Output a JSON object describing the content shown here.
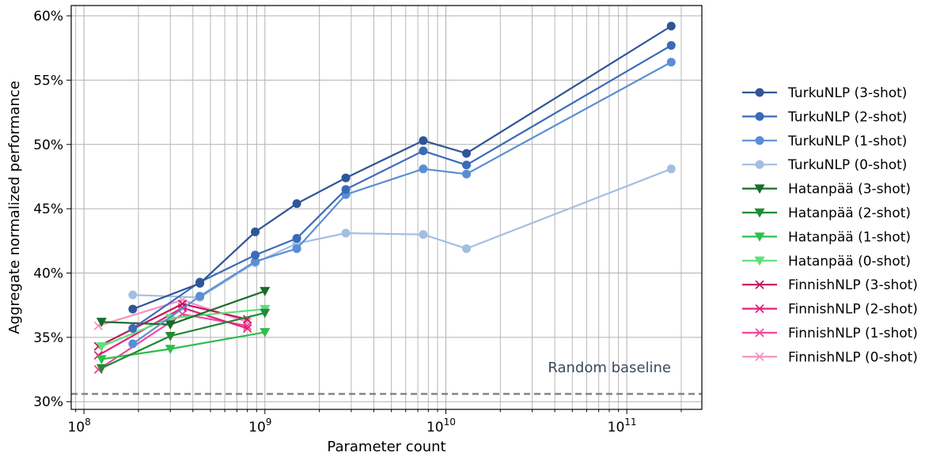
{
  "chart_data": {
    "type": "line",
    "xlabel": "Parameter count",
    "ylabel": "Aggregate normalized performance",
    "x_scale": "log",
    "xlim": [
      85000000,
      260000000000
    ],
    "ylim": [
      29.4,
      60.8
    ],
    "x_ticks": [
      {
        "value": 100000000,
        "base": "10",
        "exp": "8"
      },
      {
        "value": 1000000000,
        "base": "10",
        "exp": "9"
      },
      {
        "value": 10000000000,
        "base": "10",
        "exp": "10"
      },
      {
        "value": 100000000000,
        "base": "10",
        "exp": "11"
      }
    ],
    "y_ticks": [
      {
        "value": 30,
        "label": "30%"
      },
      {
        "value": 35,
        "label": "35%"
      },
      {
        "value": 40,
        "label": "40%"
      },
      {
        "value": 45,
        "label": "45%"
      },
      {
        "value": 50,
        "label": "50%"
      },
      {
        "value": 55,
        "label": "55%"
      },
      {
        "value": 60,
        "label": "60%"
      }
    ],
    "grid": true,
    "legend_position": "outside-right",
    "baseline": {
      "label": "Random baseline",
      "value": 30.6,
      "color": "#808080"
    },
    "series": [
      {
        "name": "TurkuNLP (3-shot)",
        "color": "#2f5597",
        "marker": "circle",
        "x": [
          186000000,
          437000000,
          884000000,
          1500000000,
          2800000000,
          7500000000,
          13000000000,
          176000000000
        ],
        "y": [
          37.2,
          39.2,
          43.2,
          45.4,
          47.4,
          50.3,
          49.3,
          59.2
        ]
      },
      {
        "name": "TurkuNLP (2-shot)",
        "color": "#3a6bb8",
        "marker": "circle",
        "x": [
          186000000,
          437000000,
          884000000,
          1500000000,
          2800000000,
          7500000000,
          13000000000,
          176000000000
        ],
        "y": [
          35.7,
          39.3,
          41.4,
          42.7,
          46.5,
          49.5,
          48.4,
          57.7
        ]
      },
      {
        "name": "TurkuNLP (1-shot)",
        "color": "#5a8ed4",
        "marker": "circle",
        "x": [
          186000000,
          437000000,
          884000000,
          1500000000,
          2800000000,
          7500000000,
          13000000000,
          176000000000
        ],
        "y": [
          34.5,
          38.2,
          40.9,
          41.9,
          46.1,
          48.1,
          47.7,
          56.4
        ]
      },
      {
        "name": "TurkuNLP (0-shot)",
        "color": "#a3bfe0",
        "marker": "circle",
        "x": [
          186000000,
          437000000,
          884000000,
          1500000000,
          2800000000,
          7500000000,
          13000000000,
          176000000000
        ],
        "y": [
          38.3,
          38.1,
          40.8,
          42.3,
          43.1,
          43.0,
          41.9,
          48.1
        ]
      },
      {
        "name": "Hatanpää (3-shot)",
        "color": "#1a6b2a",
        "marker": "triangle-down",
        "x": [
          125000000,
          300000000,
          1000000000
        ],
        "y": [
          36.2,
          36.0,
          38.6
        ]
      },
      {
        "name": "Hatanpää (2-shot)",
        "color": "#228b34",
        "marker": "triangle-down",
        "x": [
          125000000,
          300000000,
          1000000000
        ],
        "y": [
          32.6,
          35.1,
          36.9
        ]
      },
      {
        "name": "Hatanpää (1-shot)",
        "color": "#2cbf4a",
        "marker": "triangle-down",
        "x": [
          125000000,
          300000000,
          1000000000
        ],
        "y": [
          33.3,
          34.1,
          35.4
        ]
      },
      {
        "name": "Hatanpää (0-shot)",
        "color": "#5de07a",
        "marker": "triangle-down",
        "x": [
          125000000,
          300000000,
          1000000000
        ],
        "y": [
          34.3,
          36.5,
          37.2
        ]
      },
      {
        "name": "FinnishNLP (3-shot)",
        "color": "#c2185b",
        "marker": "x",
        "x": [
          120000000,
          350000000,
          800000000
        ],
        "y": [
          34.3,
          37.6,
          36.4
        ]
      },
      {
        "name": "FinnishNLP (2-shot)",
        "color": "#e0217a",
        "marker": "x",
        "x": [
          120000000,
          350000000,
          800000000
        ],
        "y": [
          33.6,
          37.3,
          35.7
        ]
      },
      {
        "name": "FinnishNLP (1-shot)",
        "color": "#f0489a",
        "marker": "x",
        "x": [
          120000000,
          350000000,
          800000000
        ],
        "y": [
          32.5,
          36.8,
          35.9
        ]
      },
      {
        "name": "FinnishNLP (0-shot)",
        "color": "#f78fc2",
        "marker": "x",
        "x": [
          120000000,
          350000000,
          800000000
        ],
        "y": [
          35.9,
          37.9,
          36.2
        ]
      }
    ]
  }
}
